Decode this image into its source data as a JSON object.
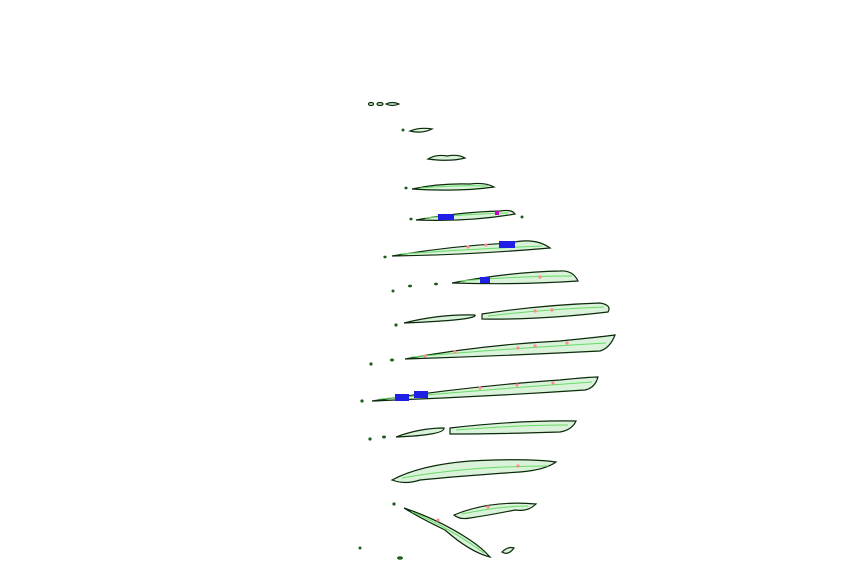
{
  "image": {
    "subject": "segmented-ridges",
    "colors": {
      "background": "#ffffff",
      "outline": "#0a2a0a",
      "fill": "#d9f2d9",
      "centerline": "#66dd66",
      "blue_mark": "#1f1fe6",
      "pink_dot": "#ff8c8c",
      "magenta_mark": "#c000c0"
    }
  }
}
